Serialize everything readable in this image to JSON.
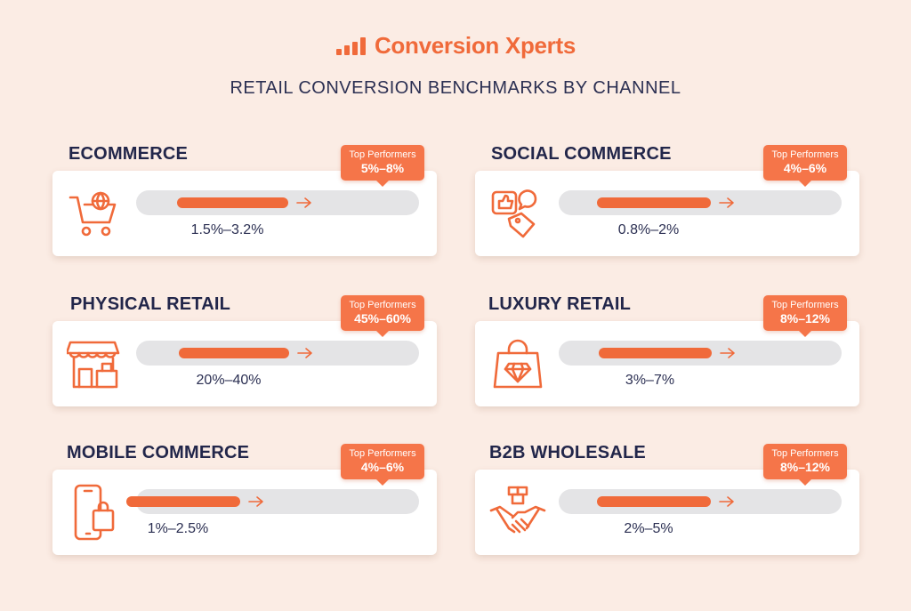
{
  "brand": {
    "name": "Conversion Xperts"
  },
  "chart_data": {
    "type": "bar",
    "title": "RETAIL CONVERSION BENCHMARKS BY CHANNEL",
    "colors": {
      "accent": "#f06a3a",
      "track": "#e4e4e6",
      "background": "#fbece4",
      "text": "#22264a"
    },
    "badge_label": "Top Performers",
    "channels": [
      {
        "name": "ECOMMERCE",
        "icon": "shopping-cart-globe-icon",
        "range_label": "1.5%–3.2%",
        "range": [
          1.5,
          3.2
        ],
        "top_label": "5%–8%",
        "top": [
          5,
          8
        ]
      },
      {
        "name": "SOCIAL COMMERCE",
        "icon": "social-like-tag-icon",
        "range_label": "0.8%–2%",
        "range": [
          0.8,
          2
        ],
        "top_label": "4%–6%",
        "top": [
          4,
          6
        ]
      },
      {
        "name": "PHYSICAL RETAIL",
        "icon": "storefront-icon",
        "range_label": "20%–40%",
        "range": [
          20,
          40
        ],
        "top_label": "45%–60%",
        "top": [
          45,
          60
        ]
      },
      {
        "name": "LUXURY RETAIL",
        "icon": "diamond-bag-icon",
        "range_label": "3%–7%",
        "range": [
          3,
          7
        ],
        "top_label": "8%–12%",
        "top": [
          8,
          12
        ]
      },
      {
        "name": "MOBILE COMMERCE",
        "icon": "mobile-shopping-icon",
        "range_label": "1%–2.5%",
        "range": [
          1,
          2.5
        ],
        "top_label": "4%–6%",
        "top": [
          4,
          6
        ]
      },
      {
        "name": "B2B WHOLESALE",
        "icon": "handshake-boxes-icon",
        "range_label": "2%–5%",
        "range": [
          2,
          5
        ],
        "top_label": "8%–12%",
        "top": [
          8,
          12
        ]
      }
    ]
  }
}
